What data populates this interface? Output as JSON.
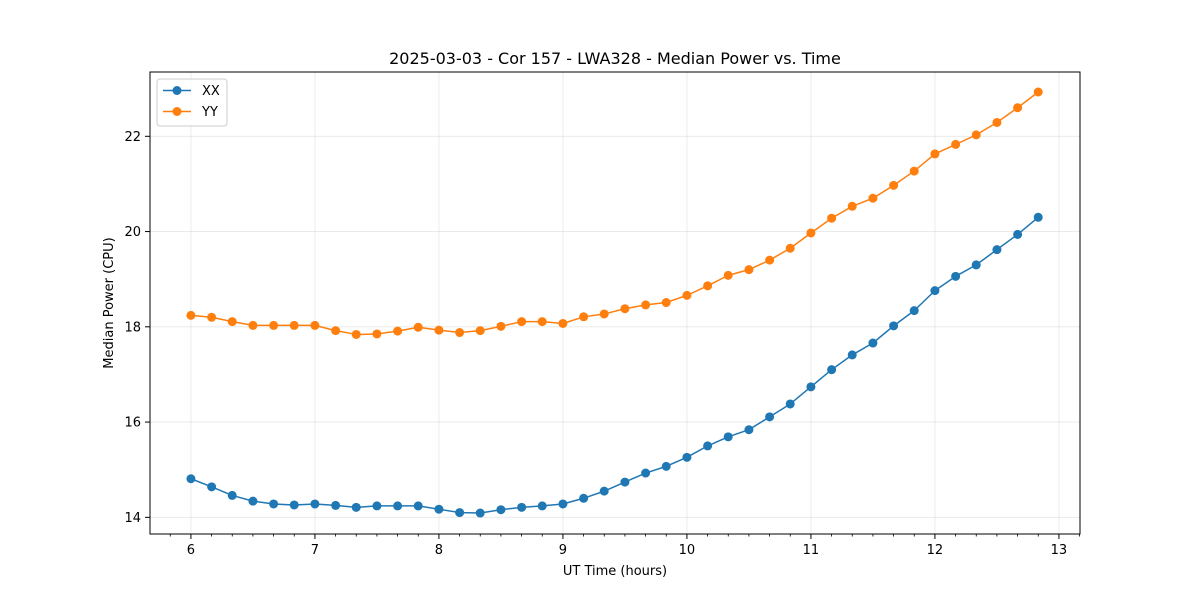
{
  "chart_data": {
    "type": "line",
    "title": "2025-03-03 - Cor 157 - LWA328 - Median Power vs. Time",
    "xlabel": "UT Time (hours)",
    "ylabel": "Median Power (CPU)",
    "xlim": [
      5.67,
      13.17
    ],
    "ylim": [
      13.65,
      23.35
    ],
    "xticks": [
      6,
      7,
      8,
      9,
      10,
      11,
      12,
      13
    ],
    "yticks": [
      14,
      16,
      18,
      20,
      22
    ],
    "grid": true,
    "legend_position": "upper-left",
    "x": [
      6.0,
      6.167,
      6.333,
      6.5,
      6.667,
      6.833,
      7.0,
      7.167,
      7.333,
      7.5,
      7.667,
      7.833,
      8.0,
      8.167,
      8.333,
      8.5,
      8.667,
      8.833,
      9.0,
      9.167,
      9.333,
      9.5,
      9.667,
      9.833,
      10.0,
      10.167,
      10.333,
      10.5,
      10.667,
      10.833,
      11.0,
      11.167,
      11.333,
      11.5,
      11.667,
      11.833,
      12.0,
      12.167,
      12.333,
      12.5,
      12.667,
      12.833
    ],
    "series": [
      {
        "name": "XX",
        "color": "#1f77b4",
        "values": [
          14.81,
          14.64,
          14.46,
          14.34,
          14.28,
          14.26,
          14.28,
          14.25,
          14.21,
          14.24,
          14.24,
          14.24,
          14.17,
          14.1,
          14.09,
          14.16,
          14.21,
          14.24,
          14.28,
          14.4,
          14.55,
          14.74,
          14.93,
          15.07,
          15.26,
          15.5,
          15.69,
          15.84,
          16.11,
          16.38,
          16.74,
          17.1,
          17.41,
          17.66,
          18.02,
          18.34,
          18.76,
          19.06,
          19.3,
          19.62,
          19.94,
          20.3
        ]
      },
      {
        "name": "YY",
        "color": "#ff7f0e",
        "values": [
          18.24,
          18.2,
          18.11,
          18.03,
          18.03,
          18.03,
          18.03,
          17.92,
          17.84,
          17.85,
          17.91,
          17.99,
          17.93,
          17.88,
          17.92,
          18.01,
          18.11,
          18.11,
          18.07,
          18.21,
          18.27,
          18.38,
          18.46,
          18.51,
          18.66,
          18.86,
          19.08,
          19.2,
          19.4,
          19.65,
          19.97,
          20.28,
          20.53,
          20.7,
          20.97,
          21.27,
          21.63,
          21.83,
          22.03,
          22.29,
          22.6,
          22.93
        ]
      }
    ]
  }
}
